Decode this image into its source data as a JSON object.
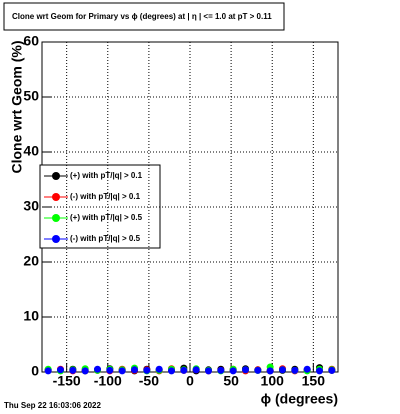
{
  "chart_data": {
    "type": "scatter",
    "title": "Clone wrt Geom for Primary vs ϕ (degrees) at | η | <= 1.0 at pT > 0.11",
    "x_label": "ϕ (degrees)",
    "y_label": "Clone wrt Geom (%)",
    "date": "Thu Sep 22 16:03:06 2022",
    "x": [
      -172.5,
      -157.5,
      -142.5,
      -127.5,
      -112.5,
      -97.5,
      -82.5,
      -67.5,
      -52.5,
      -37.5,
      -22.5,
      -7.5,
      7.5,
      22.5,
      37.5,
      52.5,
      67.5,
      82.5,
      97.5,
      112.5,
      127.5,
      142.5,
      157.5,
      172.5
    ],
    "series": [
      {
        "name": "(+) with pT/|q| > 0.1",
        "color": "#000000",
        "values": [
          0.4,
          0.3,
          0.5,
          0.2,
          0.4,
          0.6,
          0.3,
          0.2,
          0.5,
          0.4,
          0.3,
          0.7,
          0.2,
          0.4,
          0.5,
          0.3,
          0.6,
          0.4,
          0.2,
          0.3,
          0.5,
          0.4,
          0.8,
          0.3
        ]
      },
      {
        "name": "(-) with pT/|q| > 0.1",
        "color": "#ff0000",
        "values": [
          0.3,
          0.5,
          0.2,
          0.4,
          0.3,
          0.2,
          0.5,
          0.3,
          0.4,
          0.2,
          0.6,
          0.3,
          0.4,
          0.2,
          0.3,
          0.5,
          0.2,
          0.4,
          0.3,
          0.6,
          0.2,
          0.3,
          0.4,
          0.5
        ]
      },
      {
        "name": "(+) with pT/|q| > 0.5",
        "color": "#00ff00",
        "values": [
          0.5,
          0.2,
          0.4,
          0.6,
          0.3,
          0.5,
          0.4,
          0.7,
          0.2,
          0.3,
          0.5,
          0.4,
          0.6,
          0.3,
          0.2,
          0.5,
          0.4,
          0.3,
          0.9,
          0.4,
          0.3,
          0.2,
          0.5,
          0.4
        ]
      },
      {
        "name": "(-) with pT/|q| > 0.5",
        "color": "#0000ff",
        "values": [
          0.2,
          0.4,
          0.3,
          0.2,
          0.5,
          0.3,
          0.2,
          0.4,
          0.3,
          0.5,
          0.2,
          0.3,
          0.4,
          0.2,
          0.3,
          0.2,
          0.4,
          0.3,
          0.2,
          0.4,
          0.3,
          0.5,
          0.2,
          0.3
        ]
      }
    ],
    "xlim": [
      -180,
      180
    ],
    "ylim": [
      0,
      60
    ],
    "xticks": [
      -150,
      -100,
      -50,
      0,
      50,
      100,
      150
    ],
    "yticks": [
      0,
      10,
      20,
      30,
      40,
      50,
      60
    ],
    "grid": true
  }
}
